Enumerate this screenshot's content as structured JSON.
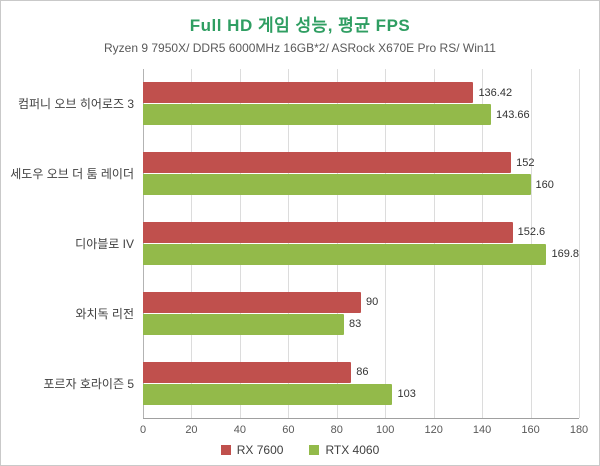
{
  "chart_data": {
    "type": "bar",
    "orientation": "horizontal",
    "title": "Full HD 게임 성능, 평균 FPS",
    "subtitle": "Ryzen 9 7950X/ DDR5 6000MHz 16GB*2/ ASRock X670E Pro RS/ Win11",
    "categories": [
      "컴퍼니 오브 히어로즈 3",
      "세도우 오브 더 툼 레이더",
      "디아블로 IV",
      "와치독 리전",
      "포르자 호라이즌 5"
    ],
    "series": [
      {
        "name": "RX 7600",
        "color": "#c0504d",
        "values": [
          136.42,
          152,
          152.6,
          90,
          86
        ]
      },
      {
        "name": "RTX 4060",
        "color": "#93ba4a",
        "values": [
          143.66,
          160,
          169.8,
          83,
          103
        ]
      }
    ],
    "xlim": [
      0,
      180
    ],
    "ticks": [
      0,
      20,
      40,
      60,
      80,
      100,
      120,
      140,
      160,
      180
    ],
    "grid": true,
    "legend_position": "bottom",
    "xlabel": "",
    "ylabel": ""
  },
  "colors": {
    "title": "#2f9e62",
    "subtitle": "#595959",
    "grid": "#dcdcdc",
    "axis": "#a0a0a0",
    "value_text": "#333333"
  }
}
